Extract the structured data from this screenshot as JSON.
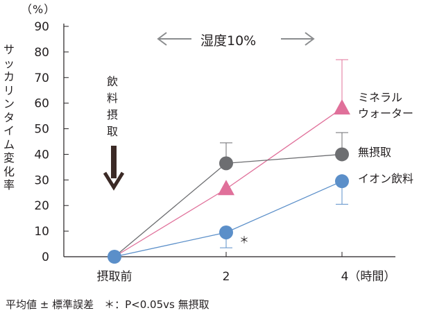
{
  "chart_data": {
    "type": "line",
    "unit_label": "（%）",
    "ylabel": "サッカリンタイム変化率",
    "ylim": [
      0,
      90
    ],
    "yticks": [
      "0",
      "10",
      "20",
      "30",
      "40",
      "50",
      "60",
      "70",
      "80",
      "90"
    ],
    "categories": [
      "摂取前",
      "2",
      "4（時間）"
    ],
    "x": [
      0,
      2,
      4
    ],
    "series": [
      {
        "name": "ミネラル\nウォーター",
        "values": [
          0,
          26.5,
          58
        ],
        "error_up": [
          0,
          0,
          19
        ],
        "marker": "triangle",
        "color": "#e0709a"
      },
      {
        "name": "無摂取",
        "values": [
          0,
          36.5,
          40
        ],
        "error_up": [
          0,
          8,
          8.5
        ],
        "marker": "circle",
        "color": "#6d6e71"
      },
      {
        "name": "イオン飲料",
        "values": [
          0,
          9.5,
          29.5
        ],
        "error_up": [
          0,
          0,
          0
        ],
        "error_down": [
          0,
          6,
          9
        ],
        "marker": "circle",
        "color": "#5b8fc9"
      }
    ],
    "annotations": {
      "humidity": "湿度10%",
      "intake": "飲料摂取",
      "significance": "＊",
      "footnote": "平均値 ± 標準誤差　＊：P<0.05vs 無摂取"
    },
    "grid": false,
    "legend": "right"
  }
}
